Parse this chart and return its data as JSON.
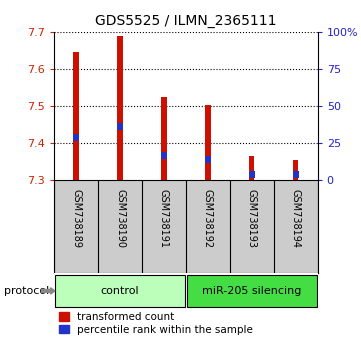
{
  "title": "GDS5525 / ILMN_2365111",
  "samples": [
    "GSM738189",
    "GSM738190",
    "GSM738191",
    "GSM738192",
    "GSM738193",
    "GSM738194"
  ],
  "groups": [
    "control",
    "control",
    "control",
    "miR-205 silencing",
    "miR-205 silencing",
    "miR-205 silencing"
  ],
  "group_colors": {
    "control": "#bbffbb",
    "miR-205 silencing": "#44dd44"
  },
  "bar_bottom": 7.3,
  "transformed_count": [
    7.645,
    7.69,
    7.525,
    7.502,
    7.365,
    7.355
  ],
  "percentile_rank_value": [
    7.415,
    7.445,
    7.365,
    7.355,
    7.315,
    7.315
  ],
  "ylim_left": [
    7.3,
    7.7
  ],
  "ylim_right": [
    0,
    100
  ],
  "yticks_left": [
    7.3,
    7.4,
    7.5,
    7.6,
    7.7
  ],
  "yticks_right": [
    0,
    25,
    50,
    75,
    100
  ],
  "ytick_labels_right": [
    "0",
    "25",
    "50",
    "75",
    "100%"
  ],
  "bar_color": "#cc1100",
  "percentile_color": "#2233cc",
  "bar_width": 0.12,
  "left_tick_color": "#cc2200",
  "right_tick_color": "#2222cc",
  "bg_sample": "#cccccc",
  "legend_red_label": "transformed count",
  "legend_blue_label": "percentile rank within the sample",
  "protocol_label": "protocol"
}
